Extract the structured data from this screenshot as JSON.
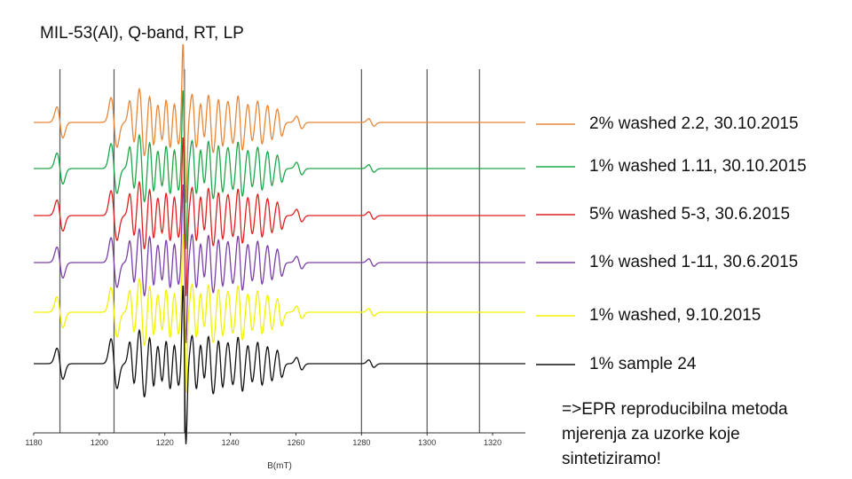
{
  "title": "MIL-53(Al), Q-band, RT, LP",
  "chart_data": {
    "type": "line",
    "title": "MIL-53(Al), Q-band, RT, LP",
    "xlabel": "B(mT)",
    "ylabel": "",
    "xlim": [
      1180,
      1330
    ],
    "x_ticks": [
      1180,
      1200,
      1220,
      1240,
      1260,
      1280,
      1300,
      1320
    ],
    "x_tick_labels": [
      "1180",
      "1200",
      "1220",
      "1240",
      "1260",
      "1280",
      "1300",
      "1320"
    ],
    "reference_lines_mT": [
      1188,
      1204.5,
      1226,
      1280,
      1300,
      1316
    ],
    "series": [
      {
        "name": "2% washed 2.2, 30.10.2015",
        "color": "#E8873A"
      },
      {
        "name": "1% washed 1.11, 30.10.2015",
        "color": "#1DA84A"
      },
      {
        "name": "5% washed 5-3, 30.6.2015",
        "color": "#E02020"
      },
      {
        "name": "1% washed 1-11, 30.6.2015",
        "color": "#7B3FA8"
      },
      {
        "name": "1% washed, 9.10.2015",
        "color": "#F2F200"
      },
      {
        "name": "1% sample 24",
        "color": "#111111"
      }
    ],
    "legend_position": "right"
  },
  "note": {
    "lines": [
      "=>EPR reproducibilna metoda",
      "mjerenja za uzorke koje",
      "sintetiziramo!"
    ]
  }
}
